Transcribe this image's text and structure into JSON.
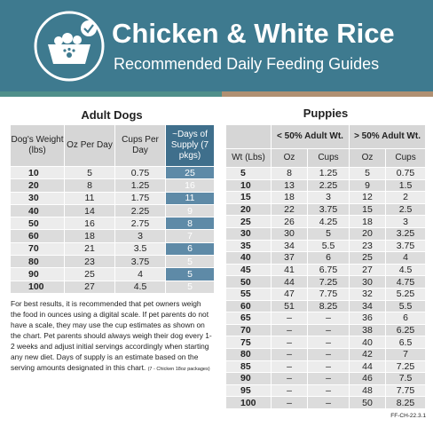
{
  "header": {
    "title": "Chicken & White Rice",
    "subtitle": "Recommended Daily Feeding Guides"
  },
  "adult": {
    "title": "Adult Dogs",
    "columns": [
      "Dog's Weight (lbs)",
      "Oz Per Day",
      "Cups Per Day",
      "~Days of Supply (7 pkgs)"
    ],
    "rows": [
      [
        "10",
        "5",
        "0.75",
        "25"
      ],
      [
        "20",
        "8",
        "1.25",
        "16"
      ],
      [
        "30",
        "11",
        "1.75",
        "11"
      ],
      [
        "40",
        "14",
        "2.25",
        "9"
      ],
      [
        "50",
        "16",
        "2.75",
        "8"
      ],
      [
        "60",
        "18",
        "3",
        "7"
      ],
      [
        "70",
        "21",
        "3.5",
        "6"
      ],
      [
        "80",
        "23",
        "3.75",
        "5"
      ],
      [
        "90",
        "25",
        "4",
        "5"
      ],
      [
        "100",
        "27",
        "4.5",
        "5"
      ]
    ]
  },
  "note": {
    "text": "For best results, it is recommended that pet owners weigh the food in ounces using a digital scale. If pet parents do not have a scale, they may use the cup estimates as shown on the chart. Pet parents should always weigh their dog every 1-2 weeks and adjust initial servings accordingly when starting any new diet. Days of supply is an estimate based on the serving amounts designated in this chart.",
    "small": "(7 - Chicken 18oz packages)"
  },
  "puppies": {
    "title": "Puppies",
    "groups": [
      "< 50% Adult Wt.",
      "> 50% Adult Wt."
    ],
    "columns": [
      "Wt (Lbs)",
      "Oz",
      "Cups",
      "Oz",
      "Cups"
    ],
    "rows": [
      [
        "5",
        "8",
        "1.25",
        "5",
        "0.75"
      ],
      [
        "10",
        "13",
        "2.25",
        "9",
        "1.5"
      ],
      [
        "15",
        "18",
        "3",
        "12",
        "2"
      ],
      [
        "20",
        "22",
        "3.75",
        "15",
        "2.5"
      ],
      [
        "25",
        "26",
        "4.25",
        "18",
        "3"
      ],
      [
        "30",
        "30",
        "5",
        "20",
        "3.25"
      ],
      [
        "35",
        "34",
        "5.5",
        "23",
        "3.75"
      ],
      [
        "40",
        "37",
        "6",
        "25",
        "4"
      ],
      [
        "45",
        "41",
        "6.75",
        "27",
        "4.5"
      ],
      [
        "50",
        "44",
        "7.25",
        "30",
        "4.75"
      ],
      [
        "55",
        "47",
        "7.75",
        "32",
        "5.25"
      ],
      [
        "60",
        "51",
        "8.25",
        "34",
        "5.5"
      ],
      [
        "65",
        "–",
        "–",
        "36",
        "6"
      ],
      [
        "70",
        "–",
        "–",
        "38",
        "6.25"
      ],
      [
        "75",
        "–",
        "–",
        "40",
        "6.5"
      ],
      [
        "80",
        "–",
        "–",
        "42",
        "7"
      ],
      [
        "85",
        "–",
        "–",
        "44",
        "7.25"
      ],
      [
        "90",
        "–",
        "–",
        "46",
        "7.5"
      ],
      [
        "95",
        "–",
        "–",
        "48",
        "7.75"
      ],
      [
        "100",
        "–",
        "–",
        "50",
        "8.25"
      ]
    ]
  },
  "footer": {
    "code": "FF-CH-22.3.1"
  }
}
